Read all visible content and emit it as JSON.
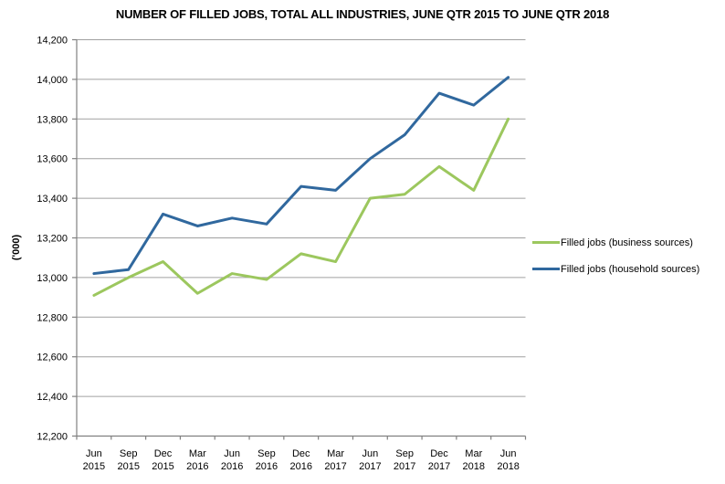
{
  "chart": {
    "title": "NUMBER OF FILLED JOBS, TOTAL ALL INDUSTRIES, JUNE QTR 2015 TO JUNE QTR 2018",
    "y_axis_title": "('000)"
  },
  "chart_data": {
    "type": "line",
    "title": "NUMBER OF FILLED JOBS, TOTAL ALL INDUSTRIES, JUNE QTR 2015 TO JUNE QTR 2018",
    "xlabel": "",
    "ylabel": "('000)",
    "ylim": [
      12200,
      14200
    ],
    "ytick_step": 200,
    "grid": true,
    "legend_position": "right",
    "grid_color": "#A0A0A0",
    "axis_color": "#808080",
    "categories": [
      "Jun 2015",
      "Sep 2015",
      "Dec 2015",
      "Mar 2016",
      "Jun 2016",
      "Sep 2016",
      "Dec 2016",
      "Mar 2017",
      "Jun 2017",
      "Sep 2017",
      "Dec 2017",
      "Mar 2018",
      "Jun 2018"
    ],
    "series": [
      {
        "name": "Filled jobs (business sources)",
        "color": "#9CC75E",
        "values": [
          12910,
          13000,
          13080,
          12920,
          13020,
          12990,
          13120,
          13080,
          13400,
          13420,
          13560,
          13440,
          13800
        ]
      },
      {
        "name": "Filled jobs (household sources)",
        "color": "#30689E",
        "values": [
          13020,
          13040,
          13320,
          13260,
          13300,
          13270,
          13460,
          13440,
          13600,
          13720,
          13930,
          13870,
          14010
        ]
      }
    ]
  }
}
